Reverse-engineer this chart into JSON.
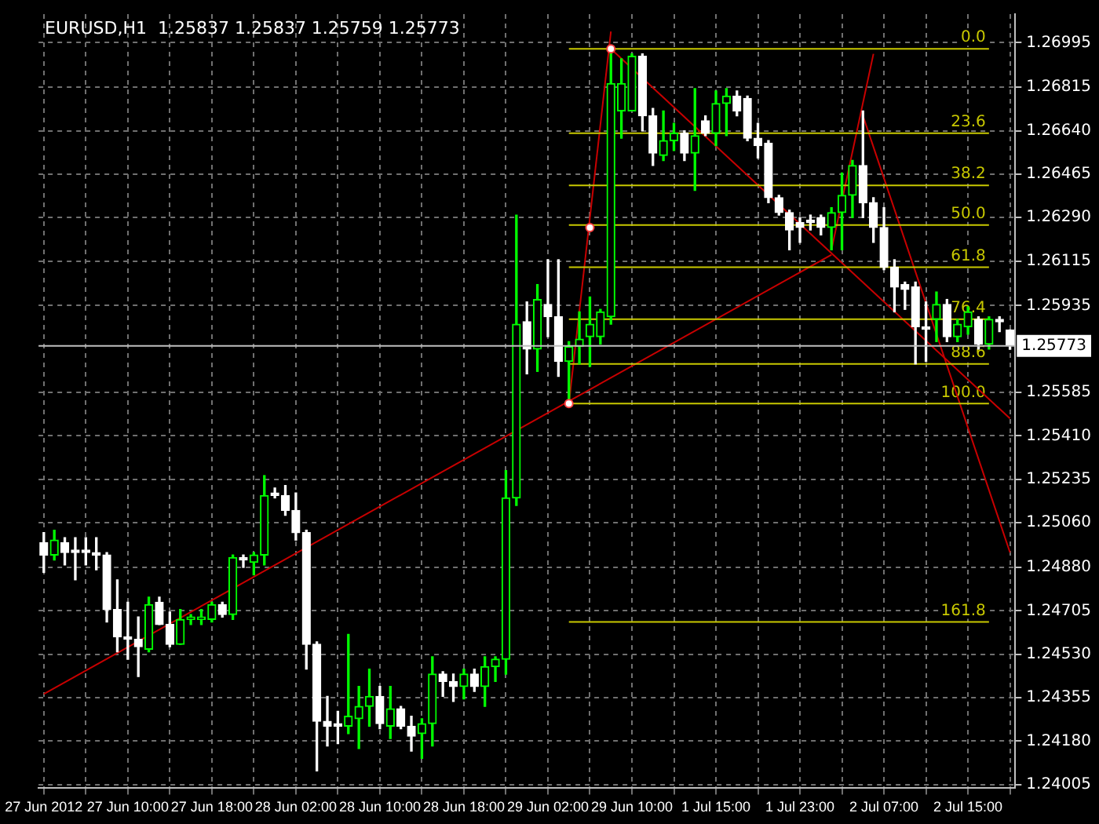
{
  "chart_data": {
    "type": "candlestick",
    "title": "EURUSD,H1  1.25837 1.25837 1.25759 1.25773",
    "colors": [
      "#ffffff",
      "#00ff00",
      "#ffffff",
      "#ffffff",
      "#ffffff",
      "#ffffff",
      "#ffffff",
      "#ffffff",
      "#ffffff",
      "#ffffff",
      "#00ff00",
      "#ffffff",
      "#ffffff",
      "#00ff00",
      "#00ff00",
      "#00ff00",
      "#00ff00",
      "#ffffff",
      "#00ff00",
      "#ffffff",
      "#00ff00",
      "#00ff00",
      "#ffffff",
      "#ffffff",
      "#ffffff",
      "#ffffff",
      "#ffffff",
      "#ffffff",
      "#ffffff",
      "#00ff00",
      "#00ff00",
      "#00ff00",
      "#ffffff",
      "#00ff00",
      "#ffffff",
      "#ffffff",
      "#00ff00",
      "#00ff00",
      "#ffffff",
      "#ffffff",
      "#00ff00",
      "#ffffff",
      "#00ff00",
      "#00ff00",
      "#00ff00",
      "#00ff00",
      "#ffffff",
      "#00ff00",
      "#ffffff",
      "#ffffff",
      "#00ff00",
      "#00ff00",
      "#00ff00",
      "#00ff00",
      "#00ff00",
      "#00ff00",
      "#00ff00",
      "#ffffff",
      "#ffffff",
      "#00ff00",
      "#00ff00",
      "#ffffff",
      "#00ff00",
      "#ffffff",
      "#00ff00",
      "#00ff00",
      "#ffffff",
      "#ffffff",
      "#ffffff",
      "#ffffff",
      "#ffffff",
      "#ffffff",
      "#ffffff",
      "#ffffff",
      "#ffffff",
      "#00ff00",
      "#00ff00",
      "#00ff00",
      "#ffffff",
      "#ffffff",
      "#ffffff",
      "#ffffff",
      "#ffffff",
      "#ffffff",
      "#ffffff",
      "#00ff00",
      "#ffffff",
      "#00ff00",
      "#00ff00",
      "#ffffff",
      "#00ff00",
      "#ffffff",
      "#ffffff"
    ],
    "categories": [
      "27 Jun 2012",
      null,
      null,
      null,
      null,
      null,
      null,
      null,
      "27 Jun 10:00",
      null,
      null,
      null,
      null,
      null,
      null,
      null,
      "27 Jun 18:00",
      null,
      null,
      null,
      null,
      null,
      null,
      null,
      "28 Jun 02:00",
      null,
      null,
      null,
      null,
      null,
      null,
      null,
      "28 Jun 10:00",
      null,
      null,
      null,
      null,
      null,
      null,
      null,
      "28 Jun 18:00",
      null,
      null,
      null,
      null,
      null,
      null,
      null,
      "29 Jun 02:00",
      null,
      null,
      null,
      null,
      null,
      null,
      null,
      "29 Jun 10:00",
      null,
      null,
      null,
      null,
      null,
      null,
      null,
      "1 Jul 15:00",
      null,
      null,
      null,
      null,
      null,
      null,
      null,
      "1 Jul 23:00",
      null,
      null,
      null,
      null,
      null,
      null,
      null,
      "2 Jul 07:00",
      null,
      null,
      null,
      null,
      null,
      null,
      null,
      "2 Jul 15:00",
      null,
      null,
      null,
      null
    ],
    "ohlc": [
      [
        1.2498,
        1.2502,
        1.2486,
        1.2493
      ],
      [
        1.2493,
        1.2503,
        1.2491,
        1.2499
      ],
      [
        1.2498,
        1.25,
        1.2489,
        1.2494
      ],
      [
        1.2495,
        1.25,
        1.2483,
        1.2494
      ],
      [
        1.2495,
        1.25,
        1.2489,
        1.2494
      ],
      [
        1.2494,
        1.25,
        1.2487,
        1.2493
      ],
      [
        1.2493,
        1.2494,
        1.2466,
        1.2471
      ],
      [
        1.2471,
        1.2483,
        1.2454,
        1.246
      ],
      [
        1.246,
        1.2474,
        1.2451,
        1.2459
      ],
      [
        1.2459,
        1.2468,
        1.2444,
        1.2456
      ],
      [
        1.2455,
        1.2476,
        1.2454,
        1.2473
      ],
      [
        1.2474,
        1.2476,
        1.2465,
        1.2465
      ],
      [
        1.2465,
        1.247,
        1.2456,
        1.2457
      ],
      [
        1.2457,
        1.2471,
        1.2457,
        1.2467
      ],
      [
        1.2467,
        1.2469,
        1.2465,
        1.2468
      ],
      [
        1.2467,
        1.2471,
        1.2465,
        1.2468
      ],
      [
        1.2467,
        1.2474,
        1.2466,
        1.2473
      ],
      [
        1.2473,
        1.2474,
        1.2468,
        1.2469
      ],
      [
        1.2469,
        1.2493,
        1.2467,
        1.2492
      ],
      [
        1.2492,
        1.2493,
        1.2488,
        1.2491
      ],
      [
        1.249,
        1.2494,
        1.2485,
        1.2493
      ],
      [
        1.2493,
        1.2525,
        1.2489,
        1.2517
      ],
      [
        1.2518,
        1.252,
        1.2516,
        1.2517
      ],
      [
        1.2517,
        1.2521,
        1.2509,
        1.2511
      ],
      [
        1.2511,
        1.2518,
        1.2499,
        1.2502
      ],
      [
        1.2502,
        1.2503,
        1.2447,
        1.2457
      ],
      [
        1.2457,
        1.2458,
        1.2406,
        1.2426
      ],
      [
        1.2426,
        1.2436,
        1.2416,
        1.2424
      ],
      [
        1.2425,
        1.243,
        1.2417,
        1.2424
      ],
      [
        1.2424,
        1.2461,
        1.2421,
        1.2428
      ],
      [
        1.2427,
        1.244,
        1.2415,
        1.2432
      ],
      [
        1.2432,
        1.2447,
        1.2424,
        1.2436
      ],
      [
        1.2436,
        1.244,
        1.2423,
        1.2425
      ],
      [
        1.2424,
        1.244,
        1.2419,
        1.2431
      ],
      [
        1.2431,
        1.2432,
        1.2423,
        1.2424
      ],
      [
        1.2424,
        1.2428,
        1.2414,
        1.242
      ],
      [
        1.2421,
        1.2427,
        1.2411,
        1.2425
      ],
      [
        1.2425,
        1.2452,
        1.2416,
        1.2445
      ],
      [
        1.2445,
        1.2446,
        1.2436,
        1.2442
      ],
      [
        1.2442,
        1.2445,
        1.2434,
        1.244
      ],
      [
        1.244,
        1.2447,
        1.2435,
        1.2445
      ],
      [
        1.2445,
        1.2447,
        1.2438,
        1.244
      ],
      [
        1.244,
        1.2452,
        1.2432,
        1.2448
      ],
      [
        1.2448,
        1.2452,
        1.2442,
        1.2451
      ],
      [
        1.2451,
        1.2527,
        1.2445,
        1.2516
      ],
      [
        1.2516,
        1.263,
        1.2513,
        1.2586
      ],
      [
        1.2587,
        1.2595,
        1.2566,
        1.2576
      ],
      [
        1.2576,
        1.2602,
        1.2567,
        1.2596
      ],
      [
        1.2594,
        1.2612,
        1.2581,
        1.2589
      ],
      [
        1.2589,
        1.2612,
        1.2565,
        1.2571
      ],
      [
        1.2571,
        1.2579,
        1.2554,
        1.2577
      ],
      [
        1.2577,
        1.2591,
        1.257,
        1.258
      ],
      [
        1.2581,
        1.2597,
        1.2569,
        1.2586
      ],
      [
        1.2581,
        1.2592,
        1.2578,
        1.2591
      ],
      [
        1.2589,
        1.2697,
        1.2586,
        1.2683
      ],
      [
        1.2672,
        1.2693,
        1.2661,
        1.2683
      ],
      [
        1.2672,
        1.2695,
        1.2672,
        1.2694
      ],
      [
        1.2694,
        1.2695,
        1.2664,
        1.267
      ],
      [
        1.267,
        1.2673,
        1.265,
        1.2655
      ],
      [
        1.2654,
        1.2672,
        1.2652,
        1.266
      ],
      [
        1.266,
        1.2667,
        1.2656,
        1.2663
      ],
      [
        1.2663,
        1.2664,
        1.2652,
        1.2655
      ],
      [
        1.2655,
        1.2681,
        1.264,
        1.2662
      ],
      [
        1.2668,
        1.267,
        1.2662,
        1.2663
      ],
      [
        1.2663,
        1.268,
        1.2658,
        1.2675
      ],
      [
        1.2675,
        1.2681,
        1.2662,
        1.2678
      ],
      [
        1.2678,
        1.268,
        1.267,
        1.2672
      ],
      [
        1.2677,
        1.2678,
        1.266,
        1.2661
      ],
      [
        1.2661,
        1.2667,
        1.2653,
        1.2658
      ],
      [
        1.2659,
        1.266,
        1.2635,
        1.2637
      ],
      [
        1.2637,
        1.2638,
        1.263,
        1.2631
      ],
      [
        1.2631,
        1.2632,
        1.2616,
        1.2624
      ],
      [
        1.2627,
        1.2629,
        1.2619,
        1.2625
      ],
      [
        1.2628,
        1.263,
        1.2624,
        1.2627
      ],
      [
        1.2629,
        1.263,
        1.2622,
        1.2625
      ],
      [
        1.2625,
        1.2633,
        1.2616,
        1.2631
      ],
      [
        1.2631,
        1.2647,
        1.2616,
        1.2638
      ],
      [
        1.2638,
        1.2652,
        1.2629,
        1.265
      ],
      [
        1.265,
        1.2672,
        1.2629,
        1.2635
      ],
      [
        1.2635,
        1.2637,
        1.2619,
        1.2625
      ],
      [
        1.2625,
        1.2633,
        1.2608,
        1.2609
      ],
      [
        1.2609,
        1.2612,
        1.2591,
        1.2601
      ],
      [
        1.2602,
        1.2603,
        1.2592,
        1.26
      ],
      [
        1.2601,
        1.2603,
        1.257,
        1.2585
      ],
      [
        1.2585,
        1.2595,
        1.2571,
        1.2584
      ],
      [
        1.2588,
        1.2599,
        1.2579,
        1.2594
      ],
      [
        1.2594,
        1.2596,
        1.2579,
        1.2581
      ],
      [
        1.2581,
        1.2588,
        1.2579,
        1.2586
      ],
      [
        1.2585,
        1.2593,
        1.2582,
        1.2591
      ],
      [
        1.2588,
        1.2589,
        1.2576,
        1.2578
      ],
      [
        1.2578,
        1.2589,
        1.2576,
        1.2588
      ],
      [
        1.2588,
        1.2589,
        1.2583,
        1.2587
      ],
      [
        1.25837,
        1.25837,
        1.25759,
        1.25773
      ]
    ],
    "series": [
      {
        "type": "line",
        "name": "0.0",
        "color": "#c8c800",
        "values": [
          null,
          null,
          null,
          null,
          null,
          null,
          null,
          null,
          null,
          null,
          null,
          null,
          null,
          null,
          null,
          null,
          null,
          null,
          null,
          null,
          null,
          null,
          null,
          null,
          null,
          null,
          null,
          null,
          null,
          null,
          null,
          null,
          null,
          null,
          null,
          null,
          null,
          null,
          null,
          null,
          null,
          null,
          null,
          null,
          null,
          null,
          null,
          null,
          null,
          null,
          1.2697,
          null,
          null,
          null,
          null,
          null,
          null,
          null,
          null,
          null,
          null,
          null,
          null,
          null,
          null,
          null,
          null,
          null,
          null,
          null,
          null,
          null,
          null,
          null,
          null,
          null,
          null,
          null,
          null,
          null,
          null,
          null,
          null,
          null,
          null,
          null,
          null,
          null,
          null,
          null,
          1.2697,
          null,
          null
        ]
      },
      {
        "type": "line",
        "name": "23.6",
        "color": "#c8c800",
        "values": [
          null,
          null,
          null,
          null,
          null,
          null,
          null,
          null,
          null,
          null,
          null,
          null,
          null,
          null,
          null,
          null,
          null,
          null,
          null,
          null,
          null,
          null,
          null,
          null,
          null,
          null,
          null,
          null,
          null,
          null,
          null,
          null,
          null,
          null,
          null,
          null,
          null,
          null,
          null,
          null,
          null,
          null,
          null,
          null,
          null,
          null,
          null,
          null,
          null,
          null,
          1.2663,
          null,
          null,
          null,
          null,
          null,
          null,
          null,
          null,
          null,
          null,
          null,
          null,
          null,
          null,
          null,
          null,
          null,
          null,
          null,
          null,
          null,
          null,
          null,
          null,
          null,
          null,
          null,
          null,
          null,
          null,
          null,
          null,
          null,
          null,
          null,
          null,
          null,
          null,
          null,
          1.2663,
          null,
          null
        ]
      },
      {
        "type": "line",
        "name": "38.2",
        "color": "#c8c800",
        "values": [
          null,
          null,
          null,
          null,
          null,
          null,
          null,
          null,
          null,
          null,
          null,
          null,
          null,
          null,
          null,
          null,
          null,
          null,
          null,
          null,
          null,
          null,
          null,
          null,
          null,
          null,
          null,
          null,
          null,
          null,
          null,
          null,
          null,
          null,
          null,
          null,
          null,
          null,
          null,
          null,
          null,
          null,
          null,
          null,
          null,
          null,
          null,
          null,
          null,
          null,
          1.2642,
          null,
          null,
          null,
          null,
          null,
          null,
          null,
          null,
          null,
          null,
          null,
          null,
          null,
          null,
          null,
          null,
          null,
          null,
          null,
          null,
          null,
          null,
          null,
          null,
          null,
          null,
          null,
          null,
          null,
          null,
          null,
          null,
          null,
          null,
          null,
          null,
          null,
          null,
          null,
          1.2642,
          null,
          null
        ]
      },
      {
        "type": "line",
        "name": "50.0",
        "color": "#c8c800",
        "values": [
          null,
          null,
          null,
          null,
          null,
          null,
          null,
          null,
          null,
          null,
          null,
          null,
          null,
          null,
          null,
          null,
          null,
          null,
          null,
          null,
          null,
          null,
          null,
          null,
          null,
          null,
          null,
          null,
          null,
          null,
          null,
          null,
          null,
          null,
          null,
          null,
          null,
          null,
          null,
          null,
          null,
          null,
          null,
          null,
          null,
          null,
          null,
          null,
          null,
          null,
          1.2626,
          null,
          null,
          null,
          null,
          null,
          null,
          null,
          null,
          null,
          null,
          null,
          null,
          null,
          null,
          null,
          null,
          null,
          null,
          null,
          null,
          null,
          null,
          null,
          null,
          null,
          null,
          null,
          null,
          null,
          null,
          null,
          null,
          null,
          null,
          null,
          null,
          null,
          null,
          null,
          1.2626,
          null,
          null
        ]
      },
      {
        "type": "line",
        "name": "61.8",
        "color": "#c8c800",
        "values": [
          null,
          null,
          null,
          null,
          null,
          null,
          null,
          null,
          null,
          null,
          null,
          null,
          null,
          null,
          null,
          null,
          null,
          null,
          null,
          null,
          null,
          null,
          null,
          null,
          null,
          null,
          null,
          null,
          null,
          null,
          null,
          null,
          null,
          null,
          null,
          null,
          null,
          null,
          null,
          null,
          null,
          null,
          null,
          null,
          null,
          null,
          null,
          null,
          null,
          null,
          1.2609,
          null,
          null,
          null,
          null,
          null,
          null,
          null,
          null,
          null,
          null,
          null,
          null,
          null,
          null,
          null,
          null,
          null,
          null,
          null,
          null,
          null,
          null,
          null,
          null,
          null,
          null,
          null,
          null,
          null,
          null,
          null,
          null,
          null,
          null,
          null,
          null,
          null,
          null,
          null,
          1.2609,
          null,
          null
        ]
      },
      {
        "type": "line",
        "name": "76.4",
        "color": "#c8c800",
        "values": [
          null,
          null,
          null,
          null,
          null,
          null,
          null,
          null,
          null,
          null,
          null,
          null,
          null,
          null,
          null,
          null,
          null,
          null,
          null,
          null,
          null,
          null,
          null,
          null,
          null,
          null,
          null,
          null,
          null,
          null,
          null,
          null,
          null,
          null,
          null,
          null,
          null,
          null,
          null,
          null,
          null,
          null,
          null,
          null,
          null,
          null,
          null,
          null,
          null,
          null,
          1.2588,
          null,
          null,
          null,
          null,
          null,
          null,
          null,
          null,
          null,
          null,
          null,
          null,
          null,
          null,
          null,
          null,
          null,
          null,
          null,
          null,
          null,
          null,
          null,
          null,
          null,
          null,
          null,
          null,
          null,
          null,
          null,
          null,
          null,
          null,
          null,
          null,
          null,
          null,
          null,
          1.2588,
          null,
          null
        ]
      },
      {
        "type": "line",
        "name": "88.6",
        "color": "#c8c800",
        "values": [
          null,
          null,
          null,
          null,
          null,
          null,
          null,
          null,
          null,
          null,
          null,
          null,
          null,
          null,
          null,
          null,
          null,
          null,
          null,
          null,
          null,
          null,
          null,
          null,
          null,
          null,
          null,
          null,
          null,
          null,
          null,
          null,
          null,
          null,
          null,
          null,
          null,
          null,
          null,
          null,
          null,
          null,
          null,
          null,
          null,
          null,
          null,
          null,
          null,
          null,
          1.257,
          null,
          null,
          null,
          null,
          null,
          null,
          null,
          null,
          null,
          null,
          null,
          null,
          null,
          null,
          null,
          null,
          null,
          null,
          null,
          null,
          null,
          null,
          null,
          null,
          null,
          null,
          null,
          null,
          null,
          null,
          null,
          null,
          null,
          null,
          null,
          null,
          null,
          null,
          null,
          1.257,
          null,
          null
        ]
      },
      {
        "type": "line",
        "name": "100.0",
        "color": "#c8c800",
        "values": [
          null,
          null,
          null,
          null,
          null,
          null,
          null,
          null,
          null,
          null,
          null,
          null,
          null,
          null,
          null,
          null,
          null,
          null,
          null,
          null,
          null,
          null,
          null,
          null,
          null,
          null,
          null,
          null,
          null,
          null,
          null,
          null,
          null,
          null,
          null,
          null,
          null,
          null,
          null,
          null,
          null,
          null,
          null,
          null,
          null,
          null,
          null,
          null,
          null,
          null,
          1.2554,
          null,
          null,
          null,
          null,
          null,
          null,
          null,
          null,
          null,
          null,
          null,
          null,
          null,
          null,
          null,
          null,
          null,
          null,
          null,
          null,
          null,
          null,
          null,
          null,
          null,
          null,
          null,
          null,
          null,
          null,
          null,
          null,
          null,
          null,
          null,
          null,
          null,
          null,
          null,
          1.2554,
          null,
          null
        ]
      },
      {
        "type": "line",
        "name": "161.8",
        "color": "#c8c800",
        "values": [
          null,
          null,
          null,
          null,
          null,
          null,
          null,
          null,
          null,
          null,
          null,
          null,
          null,
          null,
          null,
          null,
          null,
          null,
          null,
          null,
          null,
          null,
          null,
          null,
          null,
          null,
          null,
          null,
          null,
          null,
          null,
          null,
          null,
          null,
          null,
          null,
          null,
          null,
          null,
          null,
          null,
          null,
          null,
          null,
          null,
          null,
          null,
          null,
          null,
          null,
          1.2466,
          null,
          null,
          null,
          null,
          null,
          null,
          null,
          null,
          null,
          null,
          null,
          null,
          null,
          null,
          null,
          null,
          null,
          null,
          null,
          null,
          null,
          null,
          null,
          null,
          null,
          null,
          null,
          null,
          null,
          null,
          null,
          null,
          null,
          null,
          null,
          null,
          null,
          null,
          null,
          1.2466,
          null,
          null
        ]
      },
      {
        "type": "line",
        "color": "#c80000",
        "values": [
          1.2437,
          null,
          null,
          null,
          null,
          null,
          null,
          null,
          null,
          null,
          null,
          null,
          null,
          null,
          null,
          null,
          null,
          null,
          null,
          null,
          null,
          null,
          null,
          null,
          null,
          null,
          null,
          null,
          null,
          null,
          null,
          null,
          null,
          null,
          null,
          null,
          null,
          null,
          null,
          null,
          null,
          null,
          null,
          null,
          null,
          null,
          null,
          null,
          null,
          null,
          null,
          null,
          null,
          null,
          null,
          null,
          null,
          null,
          null,
          null,
          null,
          null,
          null,
          null,
          null,
          null,
          null,
          null,
          null,
          null,
          null,
          null,
          null,
          null,
          null,
          1.2614,
          null,
          null,
          null,
          null,
          null,
          null,
          null,
          null,
          null,
          null,
          null,
          null,
          null,
          null,
          null,
          null,
          null
        ]
      },
      {
        "type": "line",
        "color": "#c80000",
        "values": [
          null,
          null,
          null,
          null,
          null,
          null,
          null,
          null,
          null,
          null,
          null,
          null,
          null,
          null,
          null,
          null,
          null,
          null,
          null,
          null,
          null,
          null,
          null,
          null,
          null,
          null,
          null,
          null,
          null,
          null,
          null,
          null,
          null,
          null,
          null,
          null,
          null,
          null,
          null,
          null,
          null,
          null,
          null,
          null,
          null,
          null,
          null,
          null,
          null,
          null,
          null,
          null,
          null,
          null,
          1.2697,
          null,
          null,
          null,
          null,
          null,
          null,
          null,
          null,
          null,
          null,
          null,
          null,
          null,
          null,
          null,
          null,
          null,
          null,
          null,
          null,
          null,
          null,
          null,
          null,
          null,
          null,
          null,
          null,
          null,
          null,
          null,
          null,
          null,
          null,
          null,
          null,
          null,
          1.2548
        ]
      },
      {
        "type": "line",
        "color": "#c80000",
        "values": [
          null,
          null,
          null,
          null,
          null,
          null,
          null,
          null,
          null,
          null,
          null,
          null,
          null,
          null,
          null,
          null,
          null,
          null,
          null,
          null,
          null,
          null,
          null,
          null,
          null,
          null,
          null,
          null,
          null,
          null,
          null,
          null,
          null,
          null,
          null,
          null,
          null,
          null,
          null,
          null,
          null,
          null,
          null,
          null,
          null,
          null,
          null,
          null,
          null,
          null,
          1.2554,
          null,
          null,
          null,
          1.2704,
          null,
          null,
          null,
          null,
          null,
          null,
          null,
          null,
          null,
          null,
          null,
          null,
          null,
          null,
          null,
          null,
          null,
          null,
          null,
          null,
          null,
          null,
          null,
          null,
          null,
          null,
          null,
          null,
          null,
          null,
          null,
          null,
          null,
          null,
          null,
          null,
          null,
          null
        ]
      },
      {
        "type": "line",
        "color": "#c80000",
        "values": [
          null,
          null,
          null,
          null,
          null,
          null,
          null,
          null,
          null,
          null,
          null,
          null,
          null,
          null,
          null,
          null,
          null,
          null,
          null,
          null,
          null,
          null,
          null,
          null,
          null,
          null,
          null,
          null,
          null,
          null,
          null,
          null,
          null,
          null,
          null,
          null,
          null,
          null,
          null,
          null,
          null,
          null,
          null,
          null,
          null,
          null,
          null,
          null,
          null,
          null,
          null,
          null,
          null,
          null,
          null,
          null,
          null,
          null,
          null,
          null,
          null,
          null,
          null,
          null,
          null,
          null,
          null,
          null,
          null,
          null,
          null,
          null,
          null,
          null,
          null,
          1.2616,
          null,
          null,
          null,
          1.2695,
          null,
          null,
          null,
          null,
          null,
          null,
          null,
          null,
          null,
          null,
          null,
          null,
          null
        ]
      },
      {
        "type": "line",
        "color": "#c80000",
        "values": [
          null,
          null,
          null,
          null,
          null,
          null,
          null,
          null,
          null,
          null,
          null,
          null,
          null,
          null,
          null,
          null,
          null,
          null,
          null,
          null,
          null,
          null,
          null,
          null,
          null,
          null,
          null,
          null,
          null,
          null,
          null,
          null,
          null,
          null,
          null,
          null,
          null,
          null,
          null,
          null,
          null,
          null,
          null,
          null,
          null,
          null,
          null,
          null,
          null,
          null,
          null,
          null,
          null,
          null,
          null,
          null,
          null,
          null,
          null,
          null,
          null,
          null,
          null,
          null,
          null,
          null,
          null,
          null,
          null,
          null,
          null,
          null,
          null,
          null,
          null,
          null,
          null,
          null,
          1.267,
          null,
          null,
          null,
          null,
          null,
          null,
          null,
          null,
          null,
          null,
          null,
          null,
          null,
          1.2494
        ]
      },
      {
        "type": "scatter",
        "color": "#ff4040",
        "marker": "circle",
        "values": [
          null,
          null,
          null,
          null,
          null,
          null,
          null,
          null,
          null,
          null,
          null,
          null,
          null,
          null,
          null,
          null,
          null,
          null,
          null,
          null,
          null,
          null,
          null,
          null,
          null,
          null,
          null,
          null,
          null,
          null,
          null,
          null,
          null,
          null,
          null,
          null,
          null,
          null,
          null,
          null,
          null,
          null,
          null,
          null,
          null,
          null,
          null,
          null,
          null,
          null,
          1.2554,
          null,
          1.2625,
          null,
          1.2697,
          null,
          null,
          null,
          null,
          null,
          null,
          null,
          null,
          null,
          null,
          null,
          null,
          null,
          null,
          null,
          null,
          null,
          null,
          null,
          null,
          null,
          null,
          null,
          null,
          null,
          null,
          null,
          null,
          null,
          null,
          null,
          null,
          null,
          null,
          null,
          null,
          null,
          null
        ]
      }
    ],
    "ref_lines": [
      {
        "axis": "y",
        "value": 1.25773,
        "label": "1.25773",
        "color": "#c0c0c0"
      }
    ],
    "ylim": [
      1.2399,
      1.2711
    ],
    "yticks": [
      1.24005,
      {
        "value": 1.2418,
        "label": "1.24180"
      },
      1.24355,
      {
        "value": 1.2453,
        "label": "1.24530"
      },
      1.24705,
      {
        "value": 1.2488,
        "label": "1.24880"
      },
      {
        "value": 1.2506,
        "label": "1.25060"
      },
      1.25235,
      {
        "value": 1.2541,
        "label": "1.25410"
      },
      1.25585,
      1.25935,
      1.26115,
      {
        "value": 1.2629,
        "label": "1.26290"
      },
      1.26465,
      {
        "value": 1.2664,
        "label": "1.26640"
      },
      1.26815,
      1.26995
    ],
    "grid": true
  }
}
